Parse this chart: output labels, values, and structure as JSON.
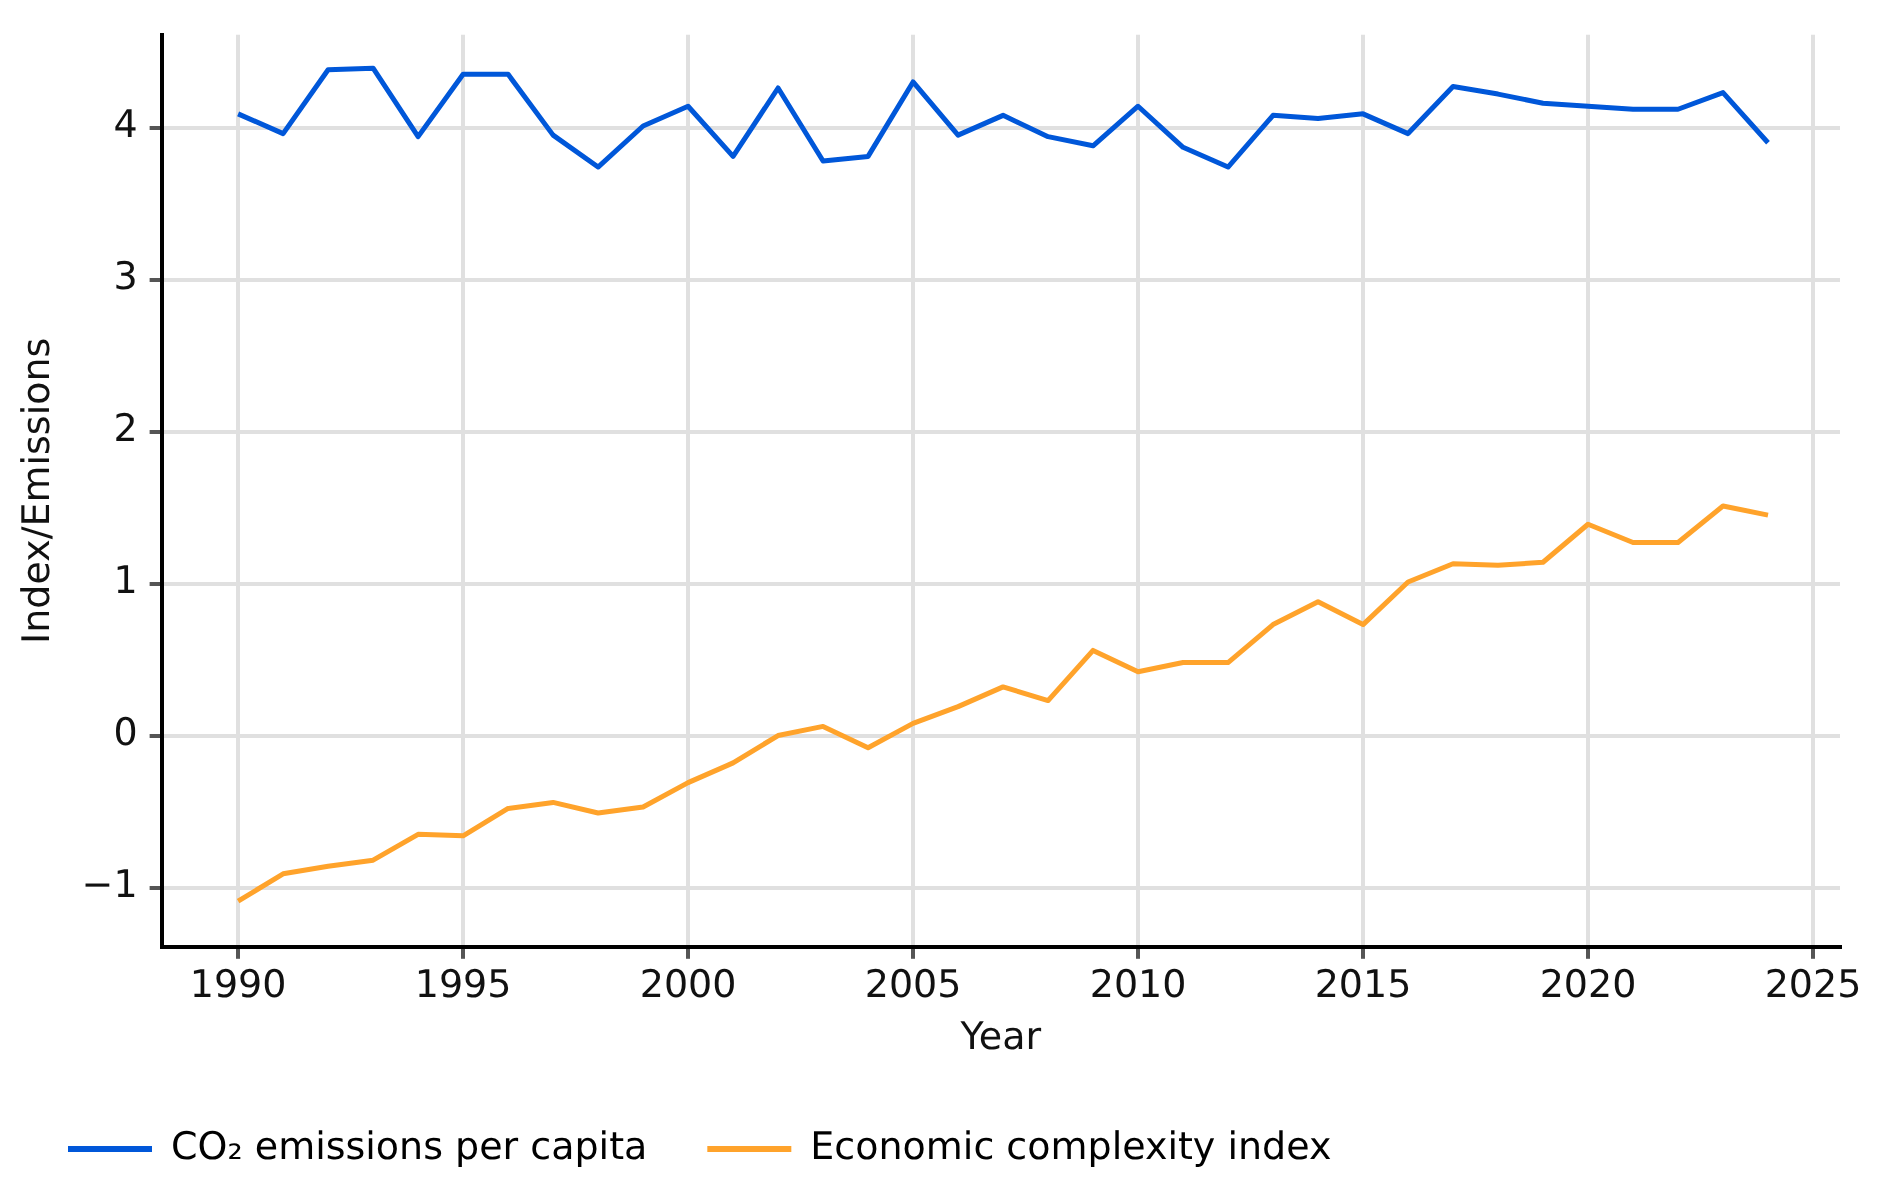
{
  "chart_data": {
    "type": "line",
    "xlabel": "Year",
    "ylabel": "Index/Emissions",
    "x": [
      1990,
      1991,
      1992,
      1993,
      1994,
      1995,
      1996,
      1997,
      1998,
      1999,
      2000,
      2001,
      2002,
      2003,
      2004,
      2005,
      2006,
      2007,
      2008,
      2009,
      2010,
      2011,
      2012,
      2013,
      2014,
      2015,
      2016,
      2017,
      2018,
      2019,
      2020,
      2021,
      2022,
      2023,
      2024
    ],
    "series": [
      {
        "name": "CO₂ emissions per capita",
        "color": "#0057d9",
        "values": [
          4.09,
          3.96,
          4.38,
          4.39,
          3.94,
          4.35,
          4.35,
          3.95,
          3.74,
          4.01,
          4.14,
          3.81,
          4.26,
          3.78,
          3.81,
          4.3,
          3.95,
          4.08,
          3.94,
          3.88,
          4.14,
          3.87,
          3.74,
          4.08,
          4.06,
          4.09,
          3.96,
          4.27,
          4.22,
          4.16,
          4.14,
          4.12,
          4.12,
          4.23,
          3.9
        ]
      },
      {
        "name": "Economic complexity index",
        "color": "#ffa32b",
        "values": [
          -1.09,
          -0.91,
          -0.86,
          -0.82,
          -0.65,
          -0.66,
          -0.48,
          -0.44,
          -0.51,
          -0.47,
          -0.31,
          -0.18,
          0.0,
          0.06,
          -0.08,
          0.08,
          0.19,
          0.32,
          0.23,
          0.56,
          0.42,
          0.48,
          0.48,
          0.73,
          0.88,
          0.73,
          1.01,
          1.13,
          1.12,
          1.14,
          1.39,
          1.27,
          1.27,
          1.51,
          1.45
        ]
      }
    ],
    "xlim": [
      1988.3,
      2025.6
    ],
    "xticks": [
      1990,
      1995,
      2000,
      2005,
      2010,
      2015,
      2020,
      2025
    ],
    "ylim": [
      -1.39,
      4.61
    ],
    "yticks": [
      {
        "value": -1,
        "label": "−1"
      },
      0,
      1,
      2,
      3,
      4
    ],
    "grid": true,
    "legend": "bottom left",
    "marker": "none",
    "line_style": "solid"
  }
}
